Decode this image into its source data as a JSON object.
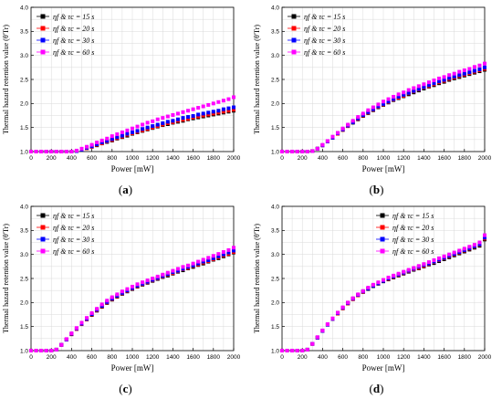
{
  "chart_data": [
    {
      "type": "scatter",
      "panel_label": "a",
      "xlabel": "Power [mW]",
      "ylabel": "Thermal hazard retention value (θ'Tr)",
      "xlim": [
        0,
        2000
      ],
      "ylim": [
        1.0,
        4.0
      ],
      "xticks": [
        0,
        200,
        400,
        600,
        800,
        1000,
        1200,
        1400,
        1600,
        1800,
        2000
      ],
      "yticks": [
        1.0,
        1.5,
        2.0,
        2.5,
        3.0,
        3.5,
        4.0
      ],
      "grid": true,
      "legend_position": "top-left",
      "x": [
        0,
        50,
        100,
        150,
        200,
        250,
        300,
        350,
        400,
        450,
        500,
        550,
        600,
        650,
        700,
        750,
        800,
        850,
        900,
        950,
        1000,
        1050,
        1100,
        1150,
        1200,
        1250,
        1300,
        1350,
        1400,
        1450,
        1500,
        1550,
        1600,
        1650,
        1700,
        1750,
        1800,
        1850,
        1900,
        1950,
        2000
      ],
      "series": [
        {
          "name": "ηf & τc = 15 s",
          "color": "#000000",
          "values": [
            1.0,
            1.0,
            1.0,
            1.0,
            1.0,
            1.0,
            1.0,
            1.0,
            1.0,
            1.01,
            1.04,
            1.07,
            1.1,
            1.13,
            1.17,
            1.2,
            1.23,
            1.27,
            1.3,
            1.33,
            1.37,
            1.4,
            1.43,
            1.46,
            1.49,
            1.52,
            1.55,
            1.57,
            1.6,
            1.62,
            1.64,
            1.67,
            1.69,
            1.71,
            1.73,
            1.75,
            1.77,
            1.79,
            1.81,
            1.83,
            1.85
          ]
        },
        {
          "name": "ηf & τc = 20 s",
          "color": "#ff0000",
          "values": [
            1.0,
            1.0,
            1.0,
            1.0,
            1.0,
            1.0,
            1.0,
            1.0,
            1.0,
            1.01,
            1.04,
            1.07,
            1.1,
            1.14,
            1.17,
            1.21,
            1.24,
            1.28,
            1.31,
            1.35,
            1.38,
            1.41,
            1.44,
            1.47,
            1.5,
            1.53,
            1.56,
            1.59,
            1.61,
            1.64,
            1.66,
            1.68,
            1.71,
            1.73,
            1.75,
            1.77,
            1.79,
            1.81,
            1.83,
            1.85,
            1.87
          ]
        },
        {
          "name": "ηf & τc = 30 s",
          "color": "#0000ff",
          "values": [
            1.0,
            1.0,
            1.0,
            1.0,
            1.0,
            1.0,
            1.0,
            1.0,
            1.0,
            1.01,
            1.04,
            1.08,
            1.11,
            1.15,
            1.19,
            1.22,
            1.26,
            1.3,
            1.33,
            1.37,
            1.4,
            1.43,
            1.47,
            1.5,
            1.53,
            1.56,
            1.59,
            1.62,
            1.64,
            1.67,
            1.7,
            1.72,
            1.74,
            1.77,
            1.79,
            1.81,
            1.83,
            1.85,
            1.88,
            1.9,
            1.92
          ]
        },
        {
          "name": "ηf & τc = 60 s",
          "color": "#ff00ff",
          "values": [
            1.0,
            1.0,
            1.0,
            1.0,
            1.0,
            1.0,
            1.0,
            1.0,
            1.0,
            1.02,
            1.06,
            1.1,
            1.14,
            1.19,
            1.23,
            1.27,
            1.32,
            1.36,
            1.4,
            1.44,
            1.48,
            1.52,
            1.56,
            1.6,
            1.63,
            1.67,
            1.7,
            1.73,
            1.76,
            1.79,
            1.82,
            1.85,
            1.88,
            1.91,
            1.94,
            1.97,
            2.0,
            2.03,
            2.06,
            2.09,
            2.13
          ]
        }
      ]
    },
    {
      "type": "scatter",
      "panel_label": "b",
      "xlabel": "Power [mW]",
      "ylabel": "Thermal hazard retention value (θ'Tr)",
      "xlim": [
        0,
        2000
      ],
      "ylim": [
        1.0,
        4.0
      ],
      "xticks": [
        0,
        200,
        400,
        600,
        800,
        1000,
        1200,
        1400,
        1600,
        1800,
        2000
      ],
      "yticks": [
        1.0,
        1.5,
        2.0,
        2.5,
        3.0,
        3.5,
        4.0
      ],
      "grid": true,
      "legend_position": "top-left",
      "x": [
        0,
        50,
        100,
        150,
        200,
        250,
        300,
        350,
        400,
        450,
        500,
        550,
        600,
        650,
        700,
        750,
        800,
        850,
        900,
        950,
        1000,
        1050,
        1100,
        1150,
        1200,
        1250,
        1300,
        1350,
        1400,
        1450,
        1500,
        1550,
        1600,
        1650,
        1700,
        1750,
        1800,
        1850,
        1900,
        1950,
        2000
      ],
      "series": [
        {
          "name": "ηf & τc = 15 s",
          "color": "#000000",
          "values": [
            1.0,
            1.0,
            1.0,
            1.0,
            1.0,
            1.0,
            1.01,
            1.06,
            1.13,
            1.21,
            1.29,
            1.37,
            1.45,
            1.53,
            1.6,
            1.67,
            1.74,
            1.8,
            1.86,
            1.92,
            1.97,
            2.02,
            2.07,
            2.11,
            2.15,
            2.19,
            2.23,
            2.27,
            2.31,
            2.35,
            2.38,
            2.42,
            2.45,
            2.49,
            2.52,
            2.55,
            2.58,
            2.61,
            2.64,
            2.67,
            2.7
          ]
        },
        {
          "name": "ηf & τc = 20 s",
          "color": "#ff0000",
          "values": [
            1.0,
            1.0,
            1.0,
            1.0,
            1.0,
            1.0,
            1.01,
            1.06,
            1.13,
            1.21,
            1.29,
            1.37,
            1.45,
            1.53,
            1.61,
            1.68,
            1.75,
            1.81,
            1.87,
            1.93,
            1.98,
            2.03,
            2.08,
            2.12,
            2.16,
            2.21,
            2.25,
            2.29,
            2.33,
            2.36,
            2.4,
            2.44,
            2.47,
            2.51,
            2.54,
            2.57,
            2.6,
            2.63,
            2.66,
            2.69,
            2.72
          ]
        },
        {
          "name": "ηf & τc = 30 s",
          "color": "#0000ff",
          "values": [
            1.0,
            1.0,
            1.0,
            1.0,
            1.0,
            1.0,
            1.01,
            1.06,
            1.13,
            1.21,
            1.29,
            1.38,
            1.46,
            1.54,
            1.61,
            1.69,
            1.76,
            1.82,
            1.88,
            1.94,
            1.99,
            2.04,
            2.09,
            2.14,
            2.18,
            2.22,
            2.26,
            2.3,
            2.34,
            2.38,
            2.42,
            2.46,
            2.49,
            2.53,
            2.56,
            2.59,
            2.62,
            2.65,
            2.68,
            2.71,
            2.75
          ]
        },
        {
          "name": "ηf & τc = 60 s",
          "color": "#ff00ff",
          "values": [
            1.0,
            1.0,
            1.0,
            1.0,
            1.0,
            1.0,
            1.01,
            1.06,
            1.14,
            1.22,
            1.31,
            1.39,
            1.48,
            1.56,
            1.64,
            1.72,
            1.79,
            1.86,
            1.92,
            1.98,
            2.04,
            2.09,
            2.14,
            2.19,
            2.23,
            2.28,
            2.32,
            2.36,
            2.4,
            2.44,
            2.48,
            2.52,
            2.55,
            2.59,
            2.62,
            2.66,
            2.69,
            2.72,
            2.76,
            2.79,
            2.83
          ]
        }
      ]
    },
    {
      "type": "scatter",
      "panel_label": "c",
      "xlabel": "Power [mW]",
      "ylabel": "Thermal hazard retention value (θ'Tr)",
      "xlim": [
        0,
        2000
      ],
      "ylim": [
        1.0,
        4.0
      ],
      "xticks": [
        0,
        200,
        400,
        600,
        800,
        1000,
        1200,
        1400,
        1600,
        1800,
        2000
      ],
      "yticks": [
        1.0,
        1.5,
        2.0,
        2.5,
        3.0,
        3.5,
        4.0
      ],
      "grid": true,
      "legend_position": "top-left",
      "x": [
        0,
        50,
        100,
        150,
        200,
        250,
        300,
        350,
        400,
        450,
        500,
        550,
        600,
        650,
        700,
        750,
        800,
        850,
        900,
        950,
        1000,
        1050,
        1100,
        1150,
        1200,
        1250,
        1300,
        1350,
        1400,
        1450,
        1500,
        1550,
        1600,
        1650,
        1700,
        1750,
        1800,
        1850,
        1900,
        1950,
        2000
      ],
      "series": [
        {
          "name": "ηf & τc = 15 s",
          "color": "#000000",
          "values": [
            1.0,
            1.0,
            1.0,
            1.0,
            1.0,
            1.02,
            1.12,
            1.23,
            1.34,
            1.45,
            1.55,
            1.65,
            1.74,
            1.83,
            1.91,
            1.99,
            2.06,
            2.12,
            2.18,
            2.23,
            2.28,
            2.33,
            2.37,
            2.41,
            2.45,
            2.49,
            2.53,
            2.56,
            2.6,
            2.64,
            2.67,
            2.71,
            2.74,
            2.78,
            2.81,
            2.85,
            2.89,
            2.92,
            2.96,
            3.0,
            3.04
          ]
        },
        {
          "name": "ηf & τc = 20 s",
          "color": "#ff0000",
          "values": [
            1.0,
            1.0,
            1.0,
            1.0,
            1.0,
            1.02,
            1.12,
            1.23,
            1.34,
            1.45,
            1.55,
            1.65,
            1.75,
            1.84,
            1.92,
            2.0,
            2.07,
            2.13,
            2.19,
            2.24,
            2.29,
            2.34,
            2.38,
            2.42,
            2.46,
            2.5,
            2.54,
            2.58,
            2.61,
            2.65,
            2.69,
            2.72,
            2.76,
            2.79,
            2.83,
            2.86,
            2.9,
            2.94,
            2.98,
            3.01,
            3.05
          ]
        },
        {
          "name": "ηf & τc = 30 s",
          "color": "#0000ff",
          "values": [
            1.0,
            1.0,
            1.0,
            1.0,
            1.0,
            1.02,
            1.12,
            1.23,
            1.35,
            1.46,
            1.56,
            1.66,
            1.76,
            1.85,
            1.93,
            2.01,
            2.08,
            2.14,
            2.2,
            2.25,
            2.3,
            2.35,
            2.39,
            2.43,
            2.47,
            2.51,
            2.55,
            2.59,
            2.63,
            2.66,
            2.7,
            2.74,
            2.77,
            2.81,
            2.85,
            2.88,
            2.92,
            2.96,
            3.0,
            3.04,
            3.08
          ]
        },
        {
          "name": "ηf & τc = 60 s",
          "color": "#ff00ff",
          "values": [
            1.0,
            1.0,
            1.0,
            1.0,
            1.0,
            1.02,
            1.12,
            1.24,
            1.36,
            1.47,
            1.58,
            1.68,
            1.78,
            1.87,
            1.96,
            2.04,
            2.11,
            2.17,
            2.23,
            2.28,
            2.33,
            2.38,
            2.42,
            2.46,
            2.5,
            2.54,
            2.58,
            2.62,
            2.66,
            2.7,
            2.74,
            2.77,
            2.81,
            2.85,
            2.89,
            2.93,
            2.97,
            3.01,
            3.05,
            3.09,
            3.14
          ]
        }
      ]
    },
    {
      "type": "scatter",
      "panel_label": "d",
      "xlabel": "Power [mW]",
      "ylabel": "Thermal hazard retention value (θ'Tr)",
      "xlim": [
        0,
        2000
      ],
      "ylim": [
        1.0,
        4.0
      ],
      "xticks": [
        0,
        200,
        400,
        600,
        800,
        1000,
        1200,
        1400,
        1600,
        1800,
        2000
      ],
      "yticks": [
        1.0,
        1.5,
        2.0,
        2.5,
        3.0,
        3.5,
        4.0
      ],
      "grid": true,
      "legend_position": "top-right",
      "x": [
        0,
        50,
        100,
        150,
        200,
        250,
        300,
        350,
        400,
        450,
        500,
        550,
        600,
        650,
        700,
        750,
        800,
        850,
        900,
        950,
        1000,
        1050,
        1100,
        1150,
        1200,
        1250,
        1300,
        1350,
        1400,
        1450,
        1500,
        1550,
        1600,
        1650,
        1700,
        1750,
        1800,
        1850,
        1900,
        1950,
        2000
      ],
      "series": [
        {
          "name": "ηf & τc = 15 s",
          "color": "#000000",
          "values": [
            1.0,
            1.0,
            1.0,
            1.0,
            1.0,
            1.02,
            1.14,
            1.27,
            1.41,
            1.54,
            1.66,
            1.77,
            1.88,
            1.98,
            2.07,
            2.15,
            2.22,
            2.28,
            2.34,
            2.39,
            2.44,
            2.48,
            2.52,
            2.56,
            2.6,
            2.64,
            2.68,
            2.71,
            2.75,
            2.79,
            2.82,
            2.86,
            2.9,
            2.94,
            2.98,
            3.02,
            3.06,
            3.1,
            3.14,
            3.18,
            3.31
          ]
        },
        {
          "name": "ηf & τc = 20 s",
          "color": "#ff0000",
          "values": [
            1.0,
            1.0,
            1.0,
            1.0,
            1.0,
            1.02,
            1.14,
            1.27,
            1.41,
            1.54,
            1.66,
            1.77,
            1.88,
            1.98,
            2.07,
            2.15,
            2.22,
            2.29,
            2.35,
            2.4,
            2.45,
            2.49,
            2.53,
            2.57,
            2.61,
            2.65,
            2.69,
            2.72,
            2.76,
            2.8,
            2.84,
            2.88,
            2.92,
            2.96,
            3.0,
            3.04,
            3.08,
            3.12,
            3.16,
            3.2,
            3.33
          ]
        },
        {
          "name": "ηf & τc = 30 s",
          "color": "#0000ff",
          "values": [
            1.0,
            1.0,
            1.0,
            1.0,
            1.0,
            1.02,
            1.14,
            1.27,
            1.41,
            1.54,
            1.66,
            1.78,
            1.89,
            1.99,
            2.08,
            2.16,
            2.23,
            2.29,
            2.35,
            2.4,
            2.45,
            2.5,
            2.54,
            2.58,
            2.62,
            2.66,
            2.7,
            2.74,
            2.78,
            2.81,
            2.85,
            2.89,
            2.93,
            2.97,
            3.01,
            3.05,
            3.09,
            3.13,
            3.17,
            3.21,
            3.35
          ]
        },
        {
          "name": "ηf & τc = 60 s",
          "color": "#ff00ff",
          "values": [
            1.0,
            1.0,
            1.0,
            1.0,
            1.0,
            1.02,
            1.14,
            1.28,
            1.42,
            1.55,
            1.67,
            1.79,
            1.9,
            2.0,
            2.09,
            2.17,
            2.24,
            2.31,
            2.37,
            2.42,
            2.47,
            2.52,
            2.56,
            2.6,
            2.64,
            2.68,
            2.72,
            2.76,
            2.8,
            2.84,
            2.88,
            2.92,
            2.96,
            3.0,
            3.04,
            3.08,
            3.12,
            3.16,
            3.2,
            3.25,
            3.4
          ]
        }
      ]
    }
  ]
}
